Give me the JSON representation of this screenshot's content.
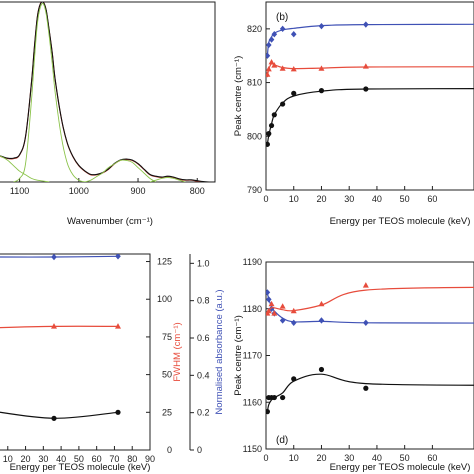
{
  "chart_data": [
    {
      "type": "line",
      "panel_label": "",
      "xlabel": "Wavenumber (cm⁻¹)",
      "ylabel": "",
      "xlim": [
        1150,
        770
      ],
      "ylim": [
        0,
        1.0
      ],
      "xticks": [
        "1100",
        "1000",
        "900",
        "800"
      ],
      "yticks": [],
      "series": [
        {
          "name": "",
          "color": "#c0392b",
          "x": [
            1150,
            1140,
            1130,
            1120,
            1110,
            1100,
            1090,
            1080,
            1075,
            1070,
            1065,
            1060,
            1055,
            1050,
            1045,
            1040,
            1030,
            1020,
            1010,
            1000,
            990,
            980,
            970,
            960,
            950,
            940,
            930,
            920,
            910,
            900,
            890,
            880,
            870,
            860,
            850,
            840,
            830,
            820,
            810,
            800,
            790,
            780,
            770
          ],
          "y": [
            0.16,
            0.15,
            0.14,
            0.13,
            0.13,
            0.15,
            0.25,
            0.55,
            0.75,
            0.92,
            0.99,
            1.0,
            0.95,
            0.84,
            0.72,
            0.57,
            0.36,
            0.22,
            0.14,
            0.09,
            0.06,
            0.04,
            0.04,
            0.05,
            0.07,
            0.1,
            0.12,
            0.125,
            0.12,
            0.1,
            0.07,
            0.04,
            0.03,
            0.025,
            0.03,
            0.025,
            0.015,
            0.01,
            0.01,
            0.005,
            0.0,
            0.0,
            0.0
          ]
        },
        {
          "name": "",
          "color": "#111111",
          "x": [
            1150,
            1140,
            1130,
            1120,
            1110,
            1100,
            1090,
            1080,
            1075,
            1070,
            1065,
            1060,
            1055,
            1050,
            1045,
            1040,
            1030,
            1020,
            1010,
            1000,
            990,
            980,
            970,
            960,
            950,
            940,
            930,
            920,
            910,
            900,
            890,
            880,
            870,
            860,
            850,
            840,
            830,
            820,
            810,
            800,
            790,
            780,
            770
          ],
          "y": [
            0.165,
            0.152,
            0.142,
            0.132,
            0.133,
            0.152,
            0.252,
            0.548,
            0.748,
            0.918,
            0.988,
            0.998,
            0.952,
            0.842,
            0.718,
            0.572,
            0.362,
            0.222,
            0.142,
            0.092,
            0.062,
            0.042,
            0.042,
            0.052,
            0.072,
            0.102,
            0.122,
            0.127,
            0.122,
            0.102,
            0.072,
            0.042,
            0.032,
            0.027,
            0.032,
            0.027,
            0.017,
            0.012,
            0.012,
            0.007,
            0.002,
            0.0,
            0.0
          ]
        },
        {
          "name": "",
          "color": "#8bc34a",
          "x": [
            1150,
            1140,
            1130,
            1120,
            1110,
            1100,
            1090,
            1080,
            1070,
            1060,
            1050
          ],
          "y": [
            0.14,
            0.15,
            0.14,
            0.12,
            0.09,
            0.06,
            0.04,
            0.02,
            0.01,
            0.005,
            0.0
          ]
        },
        {
          "name": "",
          "color": "#8bc34a",
          "x": [
            1110,
            1100,
            1090,
            1080,
            1075,
            1070,
            1065,
            1060,
            1055,
            1050,
            1045,
            1040,
            1030,
            1020,
            1010,
            1000,
            990
          ],
          "y": [
            0.0,
            0.02,
            0.1,
            0.45,
            0.68,
            0.88,
            0.97,
            0.99,
            0.93,
            0.81,
            0.66,
            0.5,
            0.26,
            0.11,
            0.04,
            0.01,
            0.0
          ]
        },
        {
          "name": "",
          "color": "#8bc34a",
          "x": [
            990,
            980,
            970,
            960,
            950,
            940,
            930,
            920,
            910,
            900,
            890,
            880,
            870
          ],
          "y": [
            0.0,
            0.01,
            0.03,
            0.05,
            0.08,
            0.1,
            0.12,
            0.12,
            0.11,
            0.08,
            0.05,
            0.02,
            0.0
          ]
        },
        {
          "name": "",
          "color": "#8bc34a",
          "x": [
            880,
            870,
            860,
            850,
            840,
            830,
            820
          ],
          "y": [
            0.0,
            0.01,
            0.02,
            0.025,
            0.02,
            0.01,
            0.0
          ]
        }
      ]
    },
    {
      "type": "scatter",
      "panel_label": "(b)",
      "xlabel": "Energy per TEOS molecule (keV)",
      "ylabel": "Peak centre (cm⁻¹)",
      "xlim": [
        0,
        75
      ],
      "ylim": [
        790,
        825
      ],
      "yticks": [
        "790",
        "800",
        "810",
        "820"
      ],
      "xticks": [
        "0",
        "10",
        "20",
        "30",
        "40",
        "50",
        "60"
      ],
      "series": [
        {
          "name": "",
          "color": "#3f51b5",
          "marker": "diamond",
          "x": [
            0.5,
            1,
            2,
            3,
            6,
            10,
            20,
            36
          ],
          "y": [
            815,
            817,
            818,
            819,
            820,
            819,
            820.5,
            820.8
          ],
          "fit_y": [
            815,
            817.5,
            818.5,
            819.2,
            819.8,
            820.1,
            820.6,
            820.8
          ]
        },
        {
          "name": "",
          "color": "#e74c3c",
          "marker": "triangle",
          "x": [
            0.5,
            1,
            2,
            3,
            6,
            10,
            20,
            36
          ],
          "y": [
            811.5,
            812.5,
            813.8,
            813.2,
            812.6,
            812.5,
            812.6,
            813
          ],
          "fit_y": [
            811,
            812.5,
            813.5,
            813.3,
            812.8,
            812.6,
            812.7,
            812.9
          ]
        },
        {
          "name": "",
          "color": "#111111",
          "marker": "circle",
          "x": [
            0.5,
            1,
            2,
            3,
            6,
            10,
            20,
            36
          ],
          "y": [
            798.5,
            800.5,
            802,
            804,
            806,
            808,
            808.5,
            808.8
          ],
          "fit_y": [
            798.5,
            800.2,
            802.3,
            804,
            806.2,
            807.5,
            808.4,
            808.8
          ]
        }
      ]
    },
    {
      "type": "scatter",
      "panel_label": "",
      "xlabel": "Energy per TEOS molecule (keV)",
      "ylabel": "FWHM (cm⁻¹)",
      "ylabel2": "Normalised absorbance (a.u.)",
      "xlim": [
        0,
        90
      ],
      "ylim": [
        0,
        130
      ],
      "ylim2": [
        0,
        1.05
      ],
      "xticks": [
        "10",
        "20",
        "30",
        "40",
        "50",
        "60",
        "70",
        "80",
        "90"
      ],
      "yticks": [
        "0",
        "25",
        "50",
        "75",
        "100",
        "125"
      ],
      "yticks2": [
        "0",
        "0.2",
        "0.4",
        "0.6",
        "0.8",
        "1.0"
      ],
      "series": [
        {
          "name": "",
          "color": "#3f51b5",
          "marker": "diamond",
          "x": [
            0,
            36,
            72
          ],
          "y": [
            128,
            128,
            128.5
          ]
        },
        {
          "name": "",
          "color": "#e74c3c",
          "marker": "triangle",
          "x": [
            0,
            36,
            72
          ],
          "y": [
            81,
            82,
            82
          ]
        },
        {
          "name": "",
          "color": "#111111",
          "marker": "circle",
          "x": [
            0,
            36,
            72
          ],
          "y": [
            26,
            21,
            25
          ]
        }
      ]
    },
    {
      "type": "scatter",
      "panel_label": "(d)",
      "xlabel": "Energy per TEOS molecule (keV)",
      "ylabel": "Peak centre (cm⁻¹)",
      "xlim": [
        0,
        75
      ],
      "ylim": [
        1150,
        1190
      ],
      "yticks": [
        "1150",
        "1160",
        "1170",
        "1180",
        "1190"
      ],
      "xticks": [
        "0",
        "10",
        "20",
        "30",
        "40",
        "50",
        "60"
      ],
      "series": [
        {
          "name": "",
          "color": "#3f51b5",
          "marker": "diamond",
          "x": [
            0.5,
            1,
            2,
            3,
            6,
            10,
            20,
            36
          ],
          "y": [
            1183.5,
            1182,
            1180,
            1179,
            1177.5,
            1177,
            1177.5,
            1177
          ],
          "fit_y": [
            1183.5,
            1182,
            1180.5,
            1179.5,
            1178,
            1177.2,
            1177.3,
            1177
          ]
        },
        {
          "name": "",
          "color": "#e74c3c",
          "marker": "triangle",
          "x": [
            0.5,
            1,
            2,
            3,
            6,
            10,
            20,
            36
          ],
          "y": [
            1179,
            1179.5,
            1181,
            1179,
            1180.5,
            1179.5,
            1181,
            1185
          ],
          "fit_y": [
            1179,
            1179.6,
            1180.2,
            1180.2,
            1179.8,
            1179.6,
            1180.8,
            1184
          ]
        },
        {
          "name": "",
          "color": "#111111",
          "marker": "circle",
          "x": [
            0.5,
            1,
            2,
            3,
            6,
            10,
            20,
            36
          ],
          "y": [
            1158,
            1161,
            1161,
            1161,
            1161,
            1165,
            1167,
            1163
          ],
          "fit_y": [
            1158,
            1159.5,
            1160.5,
            1161,
            1162,
            1164.5,
            1166,
            1164
          ]
        }
      ]
    }
  ]
}
